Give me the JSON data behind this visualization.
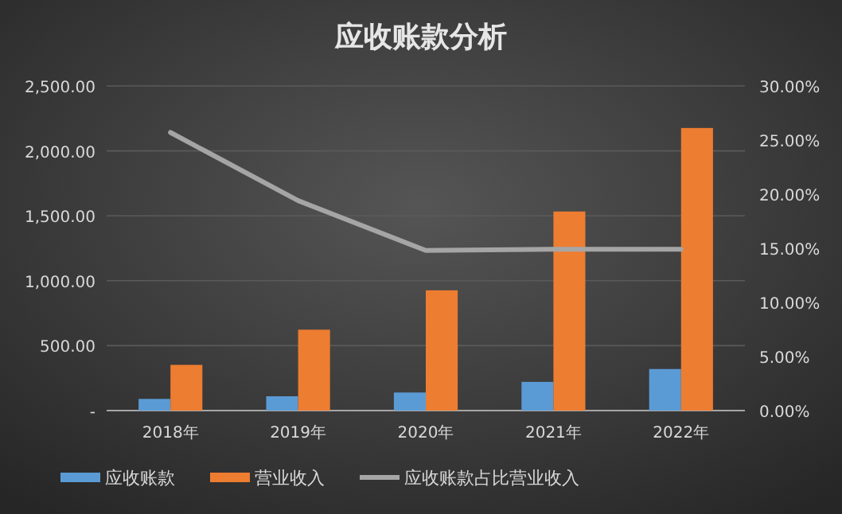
{
  "chart_data": {
    "type": "bar",
    "title": "应收账款分析",
    "categories": [
      "2018年",
      "2019年",
      "2020年",
      "2021年",
      "2022年"
    ],
    "series": [
      {
        "name": "应收账款",
        "color": "#5b9bd5",
        "values": [
          90,
          110,
          139,
          221,
          320
        ]
      },
      {
        "name": "营业收入",
        "color": "#ed7d31",
        "values": [
          352,
          623,
          926,
          1533,
          2176
        ]
      },
      {
        "name": "应收账款占比营业收入",
        "type": "line",
        "axis": "y2",
        "color": "#a5a5a5",
        "values": [
          25.7,
          19.4,
          14.8,
          14.9,
          14.9
        ]
      }
    ],
    "ylim": [
      0,
      2500
    ],
    "yticks": [
      {
        "value": 0,
        "label": "-"
      },
      {
        "value": 500,
        "label": "500.00"
      },
      {
        "value": 1000,
        "label": "1,000.00"
      },
      {
        "value": 1500,
        "label": "1,500.00"
      },
      {
        "value": 2000,
        "label": "2,000.00"
      },
      {
        "value": 2500,
        "label": "2,500.00"
      }
    ],
    "y2lim": [
      0,
      30
    ],
    "y2ticks": [
      {
        "value": 0,
        "label": "0.00%"
      },
      {
        "value": 5,
        "label": "5.00%"
      },
      {
        "value": 10,
        "label": "10.00%"
      },
      {
        "value": 15,
        "label": "15.00%"
      },
      {
        "value": 20,
        "label": "20.00%"
      },
      {
        "value": 25,
        "label": "25.00%"
      },
      {
        "value": 30,
        "label": "30.00%"
      }
    ],
    "grid": "y",
    "legend": "bottom",
    "marker": "none",
    "line_style": "solid"
  }
}
